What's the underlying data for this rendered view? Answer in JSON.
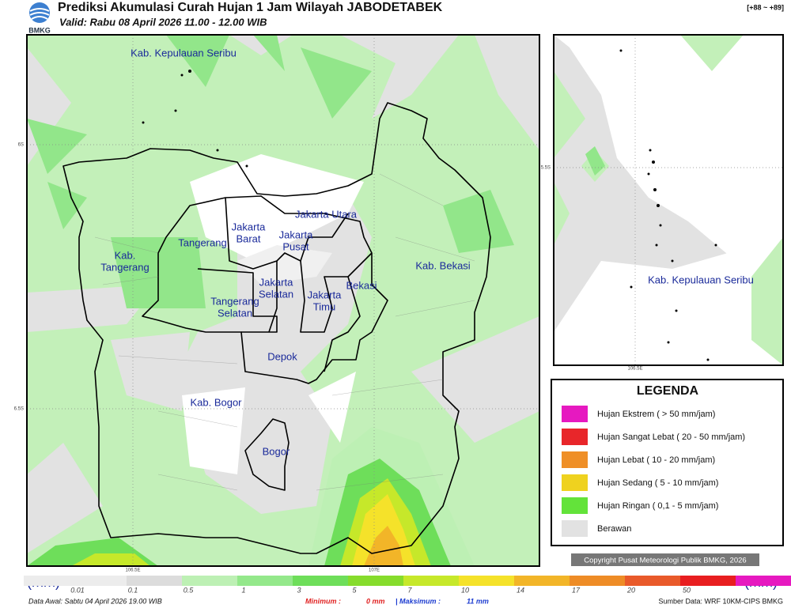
{
  "header": {
    "title": "Prediksi Akumulasi Curah Hujan 1 Jam Wilayah JABODETABEK",
    "valid": "Valid: Rabu 08 April 2026 11.00 - 12.00 WIB",
    "logo": "BMKG",
    "code": "[+88 ~ +89]"
  },
  "map": {
    "labels": [
      {
        "lines": [
          "Kab. Kepulauan Seribu"
        ]
      },
      {
        "lines": [
          "Jakarta Utara"
        ]
      },
      {
        "lines": [
          "Jakarta",
          "Barat"
        ]
      },
      {
        "lines": [
          "Jakarta",
          "Pusat"
        ]
      },
      {
        "lines": [
          "Tangerang"
        ]
      },
      {
        "lines": [
          "Kab.",
          "Tangerang"
        ]
      },
      {
        "lines": [
          "Jakarta",
          "Selatan"
        ]
      },
      {
        "lines": [
          "Jakarta",
          "Timu"
        ]
      },
      {
        "lines": [
          "Bekasi"
        ]
      },
      {
        "lines": [
          "Kab. Bekasi"
        ]
      },
      {
        "lines": [
          "Tangerang",
          "Selatan"
        ]
      },
      {
        "lines": [
          "Depok"
        ]
      },
      {
        "lines": [
          "Kab. Bogor"
        ]
      },
      {
        "lines": [
          "Bogor"
        ]
      }
    ],
    "axis": [
      "6S",
      "6.5S",
      "106.5E",
      "107E"
    ]
  },
  "inset": {
    "label": "Kab. Kepulauan Seribu",
    "axis": [
      "5.5S",
      "106.5E"
    ]
  },
  "legend": {
    "title": "LEGENDA",
    "items": [
      {
        "label": "Hujan Ekstrem ( > 50 mm/jam)",
        "color": "#e619c0"
      },
      {
        "label": "Hujan Sangat Lebat ( 20 - 50 mm/jam)",
        "color": "#e8262a"
      },
      {
        "label": "Hujan Lebat ( 10 - 20 mm/jam)",
        "color": "#ef8f27"
      },
      {
        "label": "Hujan Sedang ( 5 - 10 mm/jam)",
        "color": "#efd21f"
      },
      {
        "label": "Hujan Ringan ( 0,1 - 5 mm/jam)",
        "color": "#63e33a"
      },
      {
        "label": "Berawan",
        "color": "#e2e2e2"
      }
    ]
  },
  "copyright": "Copyright Pusat Meteorologi Publik BMKG, 2026",
  "colorbar": {
    "unit": "(mm)",
    "ticks": [
      "0.01",
      "0.1",
      "0.5",
      "1",
      "3",
      "5",
      "7",
      "10",
      "14",
      "17",
      "20",
      "50"
    ],
    "colors": [
      "#ececec",
      "#dcdcdc",
      "#bdf0b4",
      "#94e88b",
      "#6ede5a",
      "#86dc2c",
      "#c6e82a",
      "#f5e22a",
      "#f2b528",
      "#ee8c26",
      "#e95a2a",
      "#e81e20",
      "#e619c0"
    ]
  },
  "footer": {
    "data_awal": "Data Awal: Sabtu 04 April 2026 19.00 WIB",
    "min_label": "Minimum :",
    "min_value": "0 mm",
    "max_label": "| Maksimum :",
    "max_value": "11 mm",
    "source": "Sumber Data: WRF 10KM-CIPS BMKG"
  }
}
